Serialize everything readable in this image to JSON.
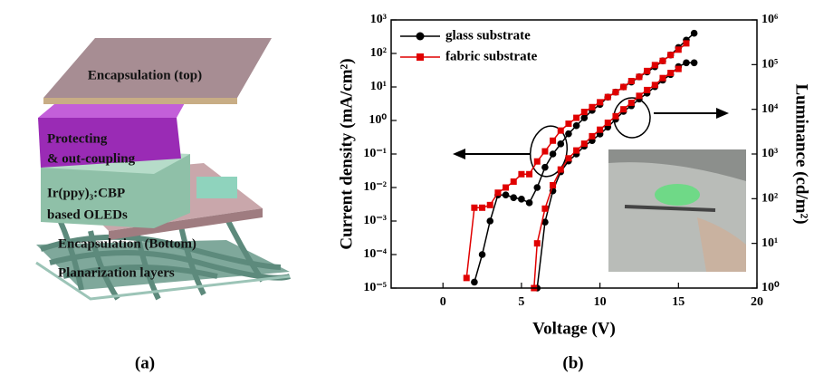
{
  "diagram": {
    "labels": [
      "Encapsulation (top)",
      "Protecting",
      "& out-coupling",
      "Ir(ppy)₃:CBP",
      "based OLEDs",
      "Encapsulation (Bottom)",
      "Planarization layers"
    ]
  },
  "panel_labels": [
    "(a)",
    "(b)"
  ],
  "chart_data": {
    "type": "line",
    "x_label": "Voltage (V)",
    "y_label": "Current density (mA/cm²)",
    "y2_label": "Luminance (cd/m²)",
    "xlim": [
      -3.3,
      20
    ],
    "xticks": [
      0,
      5,
      10,
      15,
      20
    ],
    "yscale": "log",
    "ylim": [
      1e-05,
      1000
    ],
    "yticks": [
      {
        "value": 1e-05,
        "label": "10⁻⁵"
      },
      {
        "value": 0.0001,
        "label": "10⁻⁴"
      },
      {
        "value": 0.001,
        "label": "10⁻³"
      },
      {
        "value": 0.01,
        "label": "10⁻²"
      },
      {
        "value": 0.1,
        "label": "10⁻¹"
      },
      {
        "value": 1,
        "label": "10⁰"
      },
      {
        "value": 10,
        "label": "10¹"
      },
      {
        "value": 100,
        "label": "10²"
      },
      {
        "value": 1000,
        "label": "10³"
      }
    ],
    "y2lim": [
      1,
      1000000
    ],
    "y2ticks": [
      {
        "value": 1,
        "label": "10⁰"
      },
      {
        "value": 10,
        "label": "10¹"
      },
      {
        "value": 100,
        "label": "10²"
      },
      {
        "value": 1000,
        "label": "10³"
      },
      {
        "value": 10000,
        "label": "10⁴"
      },
      {
        "value": 100000,
        "label": "10⁵"
      },
      {
        "value": 1000000,
        "label": "10⁶"
      }
    ],
    "legend": "upper left",
    "series": [
      {
        "name": "glass substrate",
        "color": "#000000",
        "marker": "circle",
        "x": [
          2,
          2.5,
          3,
          3.5,
          4,
          4.5,
          5,
          5.5,
          6,
          6.5,
          7,
          7.5,
          8,
          8.5,
          9,
          9.5,
          10,
          10.5,
          11,
          11.5,
          12,
          12.5,
          13,
          13.5,
          14,
          14.5,
          15,
          15.5,
          16
        ],
        "values": [
          1.5e-05,
          0.0001,
          0.001,
          0.006,
          0.006,
          0.005,
          0.0045,
          0.0035,
          0.01,
          0.04,
          0.1,
          0.2,
          0.4,
          0.7,
          1.2,
          2,
          3,
          5,
          7,
          10,
          14,
          20,
          28,
          40,
          60,
          90,
          150,
          250,
          400
        ]
      },
      {
        "name": "fabric substrate",
        "color": "#e00000",
        "marker": "square",
        "x": [
          1.5,
          2,
          2.5,
          3,
          3.5,
          4,
          4.5,
          5,
          5.5,
          6,
          6.5,
          7,
          7.5,
          8,
          8.5,
          9,
          9.5,
          10,
          10.5,
          11,
          11.5,
          12,
          12.5,
          13,
          13.5,
          14,
          14.5,
          15,
          15.5
        ],
        "values": [
          2e-05,
          0.0025,
          0.0025,
          0.003,
          0.007,
          0.01,
          0.015,
          0.025,
          0.025,
          0.06,
          0.12,
          0.25,
          0.5,
          0.8,
          1.2,
          1.8,
          2.5,
          3.5,
          5,
          7,
          10,
          15,
          20,
          30,
          45,
          60,
          90,
          130,
          200
        ]
      },
      {
        "color": "#000000",
        "marker": "circle",
        "axis": "y2",
        "x": [
          6,
          6.5,
          7,
          7.5,
          8,
          8.5,
          9,
          9.5,
          10,
          10.5,
          11,
          11.5,
          12,
          12.5,
          13,
          13.5,
          14,
          14.5,
          15,
          15.5,
          16
        ],
        "values": [
          1,
          30,
          150,
          400,
          700,
          1000,
          1500,
          2000,
          2800,
          4000,
          6000,
          9000,
          12000,
          17000,
          23000,
          32000,
          45000,
          60000,
          90000,
          110000,
          110000
        ]
      },
      {
        "color": "#e00000",
        "marker": "square",
        "axis": "y2",
        "x": [
          5.8,
          6,
          6.5,
          7,
          7.5,
          8,
          8.5,
          9,
          9.5,
          10,
          10.5,
          11,
          11.5,
          12,
          12.5,
          13,
          13.5,
          14,
          14.5,
          15
        ],
        "values": [
          1,
          10,
          60,
          200,
          450,
          800,
          1200,
          1700,
          2500,
          3500,
          5000,
          7000,
          10000,
          14000,
          20000,
          27000,
          35000,
          50000,
          65000,
          80000
        ]
      }
    ]
  }
}
